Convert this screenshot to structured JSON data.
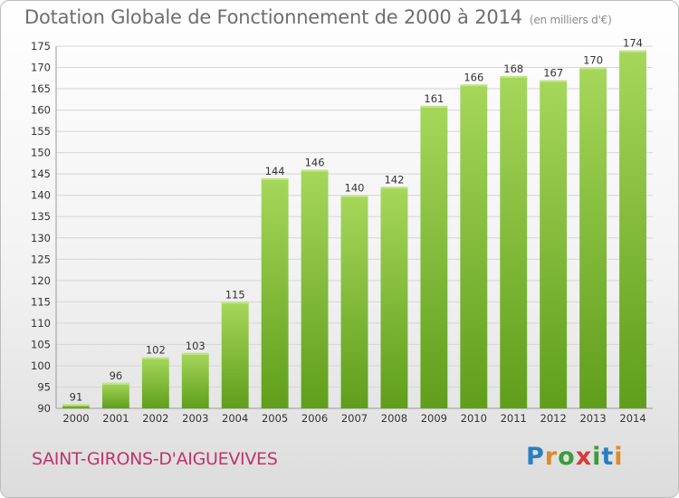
{
  "header": {
    "title": "Dotation Globale de Fonctionnement de 2000 à 2014",
    "unit": "(en milliers d'€)"
  },
  "footer": {
    "commune": "SAINT-GIRONS-D'AIGUEVIVES",
    "brand": "Proxiti",
    "brand_letters": [
      {
        "ch": "P",
        "color": "#2a7fc1"
      },
      {
        "ch": "r",
        "color": "#e0892a"
      },
      {
        "ch": "o",
        "color": "#3a9d3a"
      },
      {
        "ch": "x",
        "color": "#d43b3b"
      },
      {
        "ch": "i",
        "color": "#3a9d3a"
      },
      {
        "ch": "t",
        "color": "#2a7fc1"
      },
      {
        "ch": "i",
        "color": "#e0892a"
      }
    ]
  },
  "colors": {
    "bar_top": "#a6d75b",
    "bar_bottom": "#5f9e1b",
    "grid": "#d6d6d6",
    "axis_text": "#333333",
    "commune": "#c0336b"
  },
  "chart_data": {
    "type": "bar",
    "title": "Dotation Globale de Fonctionnement de 2000 à 2014",
    "subtitle": "(en milliers d'€)",
    "xlabel": "",
    "ylabel": "",
    "categories": [
      "2000",
      "2001",
      "2002",
      "2003",
      "2004",
      "2005",
      "2006",
      "2007",
      "2008",
      "2009",
      "2010",
      "2011",
      "2012",
      "2013",
      "2014"
    ],
    "values": [
      91,
      96,
      102,
      103,
      115,
      144,
      146,
      140,
      142,
      161,
      166,
      168,
      167,
      170,
      174
    ],
    "ylim": [
      90,
      175
    ],
    "yticks": [
      90,
      95,
      100,
      105,
      110,
      115,
      120,
      125,
      130,
      135,
      140,
      145,
      150,
      155,
      160,
      165,
      170,
      175
    ],
    "grid": true,
    "data_labels": true,
    "legend": "none"
  }
}
